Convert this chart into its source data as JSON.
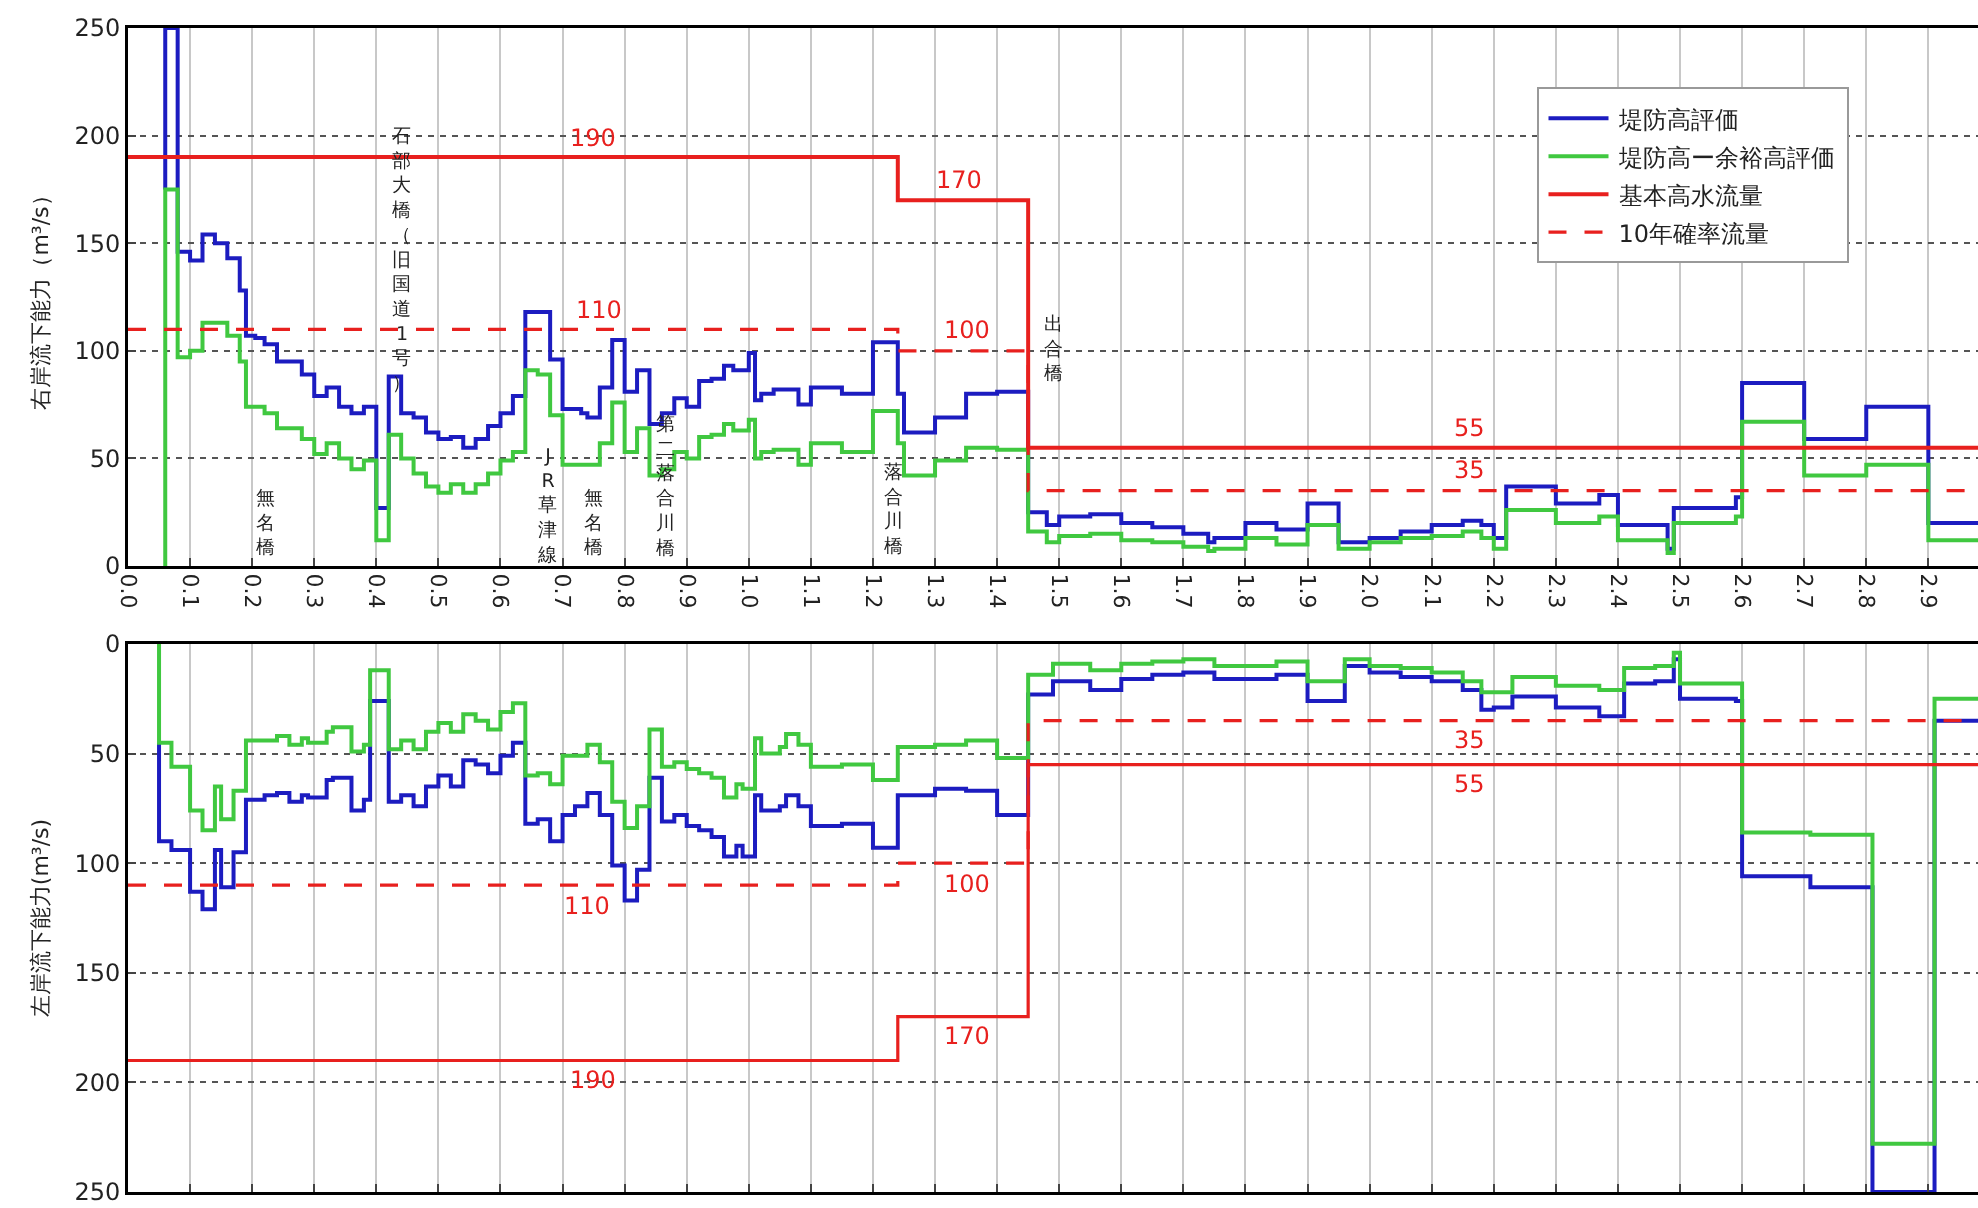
{
  "chart_data": [
    {
      "type": "step",
      "ylabel": "右岸流下能力（m³/s）",
      "xlim": [
        0,
        2.98
      ],
      "ylim": [
        0,
        250
      ],
      "xticks": [
        {
          "value": 0,
          "label": "0.0"
        },
        0.1,
        0.2,
        0.3,
        0.4,
        0.5,
        0.6,
        0.7,
        0.8,
        0.9,
        {
          "value": 1,
          "label": "1.0"
        },
        1.1,
        1.2,
        1.3,
        1.4,
        1.5,
        1.6,
        1.7,
        1.8,
        1.9,
        {
          "value": 2,
          "label": "2.0"
        },
        2.1,
        2.2,
        2.3,
        2.4,
        2.5,
        2.6,
        2.7,
        2.8,
        2.9
      ],
      "yticks": [
        0,
        50,
        100,
        150,
        200,
        250
      ],
      "grid": true,
      "legend": "top right",
      "series": [
        {
          "name": "堤防高評価",
          "color": "#1c1cc0",
          "x": [
            0.06,
            0.06,
            0.08,
            0.1,
            0.12,
            0.14,
            0.16,
            0.18,
            0.19,
            0.205,
            0.22,
            0.24,
            0.28,
            0.3,
            0.32,
            0.34,
            0.36,
            0.38,
            0.4,
            0.42,
            0.44,
            0.46,
            0.48,
            0.5,
            0.52,
            0.54,
            0.56,
            0.58,
            0.6,
            0.62,
            0.64,
            0.68,
            0.7,
            0.73,
            0.74,
            0.76,
            0.78,
            0.8,
            0.82,
            0.84,
            0.86,
            0.88,
            0.9,
            0.92,
            0.94,
            0.96,
            0.975,
            1.0,
            1.01,
            1.02,
            1.04,
            1.08,
            1.1,
            1.15,
            1.2,
            1.24,
            1.25,
            1.3,
            1.35,
            1.4,
            1.45,
            1.48,
            1.5,
            1.55,
            1.6,
            1.65,
            1.7,
            1.74,
            1.75,
            1.8,
            1.85,
            1.9,
            1.95,
            2.0,
            2.05,
            2.1,
            2.15,
            2.18,
            2.2,
            2.22,
            2.3,
            2.37,
            2.4,
            2.48,
            2.49,
            2.59,
            2.6,
            2.7,
            2.8,
            2.9,
            2.98
          ],
          "values": [
            175,
            250,
            146,
            142,
            154,
            150,
            143,
            128,
            107,
            106,
            103,
            95,
            89,
            79,
            83,
            74,
            71,
            74,
            27,
            88,
            71,
            69,
            62,
            59,
            60,
            55,
            59,
            65,
            71,
            79,
            118,
            96,
            73,
            71,
            69,
            83,
            105,
            81,
            91,
            66,
            71,
            78,
            74,
            86,
            87,
            93,
            91,
            99,
            77,
            80,
            82,
            75,
            83,
            80,
            104,
            80,
            62,
            69,
            80,
            81,
            25,
            19,
            23,
            24,
            20,
            18,
            15,
            11,
            13,
            20,
            17,
            29,
            11,
            13,
            16,
            19,
            21,
            19,
            13,
            37,
            29,
            33,
            19,
            8,
            27,
            32,
            85,
            59,
            74,
            20,
            20
          ]
        },
        {
          "name": "堤防高ー余裕高評価",
          "color": "#40c840",
          "x": [
            0.06,
            0.06,
            0.08,
            0.1,
            0.12,
            0.16,
            0.18,
            0.19,
            0.22,
            0.24,
            0.28,
            0.3,
            0.32,
            0.34,
            0.36,
            0.38,
            0.4,
            0.42,
            0.44,
            0.46,
            0.48,
            0.5,
            0.52,
            0.54,
            0.56,
            0.58,
            0.6,
            0.62,
            0.64,
            0.66,
            0.68,
            0.7,
            0.76,
            0.78,
            0.8,
            0.82,
            0.84,
            0.86,
            0.88,
            0.9,
            0.92,
            0.94,
            0.96,
            0.975,
            1.0,
            1.01,
            1.02,
            1.04,
            1.08,
            1.1,
            1.15,
            1.2,
            1.24,
            1.25,
            1.3,
            1.35,
            1.4,
            1.45,
            1.48,
            1.5,
            1.55,
            1.6,
            1.65,
            1.7,
            1.74,
            1.75,
            1.8,
            1.85,
            1.9,
            1.95,
            2.0,
            2.05,
            2.1,
            2.15,
            2.18,
            2.2,
            2.22,
            2.3,
            2.37,
            2.4,
            2.48,
            2.49,
            2.59,
            2.6,
            2.7,
            2.8,
            2.9,
            2.98
          ],
          "values": [
            0,
            175,
            97,
            100,
            113,
            107,
            95,
            74,
            71,
            64,
            59,
            52,
            57,
            50,
            45,
            49,
            12,
            61,
            50,
            43,
            37,
            34,
            38,
            34,
            38,
            43,
            49,
            53,
            91,
            89,
            70,
            47,
            57,
            76,
            53,
            64,
            42,
            45,
            53,
            50,
            60,
            61,
            66,
            63,
            68,
            50,
            53,
            54,
            47,
            57,
            53,
            72,
            57,
            42,
            49,
            55,
            54,
            16,
            11,
            14,
            15,
            12,
            11,
            9,
            7,
            8,
            13,
            10,
            19,
            8,
            11,
            13,
            14,
            16,
            13,
            8,
            26,
            20,
            23,
            12,
            6,
            20,
            23,
            67,
            42,
            47,
            12,
            12
          ]
        },
        {
          "name": "基本高水流量",
          "color": "#e8201e",
          "x": [
            0,
            1.24,
            1.45,
            2.98
          ],
          "values": [
            190,
            170,
            55,
            55
          ]
        },
        {
          "name": "10年確率流量",
          "color": "#e8201e",
          "line_style": "dashed",
          "x": [
            0,
            1.24,
            1.45,
            2.98
          ],
          "values": [
            110,
            100,
            35,
            35
          ]
        }
      ],
      "annotations": [
        {
          "text": "190",
          "x": 0.75,
          "y": 190
        },
        {
          "text": "170",
          "x": 1.34,
          "y": 170
        },
        {
          "text": "110",
          "x": 0.76,
          "y": 110
        },
        {
          "text": "100",
          "x": 1.35,
          "y": 100
        },
        {
          "text": "55",
          "x": 2.16,
          "y": 55
        },
        {
          "text": "35",
          "x": 2.16,
          "y": 35
        },
        "無名橋",
        "石部大橋（旧国道1号）",
        "JR草津線",
        "無名橋",
        "第二落合川橋",
        "落合川橋",
        "出合橋"
      ]
    },
    {
      "type": "step",
      "ylabel": "左岸流下能力(m³/s)",
      "xlim": [
        0,
        2.98
      ],
      "ylim": [
        250,
        0
      ],
      "tick_labels": "y",
      "xticks": [
        0,
        0.1,
        0.2,
        0.3,
        0.4,
        0.5,
        0.6,
        0.7,
        0.8,
        0.9,
        1,
        1.1,
        1.2,
        1.3,
        1.4,
        1.5,
        1.6,
        1.7,
        1.8,
        1.9,
        2,
        2.1,
        2.2,
        2.3,
        2.4,
        2.5,
        2.6,
        2.7,
        2.8,
        2.9
      ],
      "yticks": [
        0,
        50,
        100,
        150,
        200,
        250
      ],
      "grid": true,
      "series": [
        {
          "color": "#1c1cc0",
          "x": [
            0.05,
            0.05,
            0.07,
            0.1,
            0.12,
            0.14,
            0.15,
            0.17,
            0.19,
            0.22,
            0.24,
            0.26,
            0.28,
            0.29,
            0.32,
            0.33,
            0.36,
            0.38,
            0.39,
            0.42,
            0.44,
            0.46,
            0.48,
            0.5,
            0.52,
            0.54,
            0.56,
            0.58,
            0.6,
            0.62,
            0.64,
            0.66,
            0.68,
            0.7,
            0.72,
            0.74,
            0.76,
            0.78,
            0.8,
            0.82,
            0.84,
            0.86,
            0.88,
            0.9,
            0.92,
            0.94,
            0.96,
            0.98,
            0.99,
            1.01,
            1.02,
            1.05,
            1.06,
            1.08,
            1.1,
            1.15,
            1.2,
            1.24,
            1.3,
            1.35,
            1.4,
            1.45,
            1.49,
            1.55,
            1.6,
            1.65,
            1.7,
            1.75,
            1.85,
            1.9,
            1.96,
            2.0,
            2.05,
            2.1,
            2.15,
            2.18,
            2.2,
            2.23,
            2.3,
            2.37,
            2.41,
            2.46,
            2.49,
            2.5,
            2.59,
            2.6,
            2.71,
            2.81,
            2.91,
            2.98
          ],
          "values": [
            45,
            90,
            94,
            113,
            121,
            94,
            111,
            95,
            71,
            69,
            68,
            72,
            69,
            70,
            62,
            61,
            76,
            71,
            26,
            72,
            69,
            74,
            65,
            60,
            65,
            53,
            55,
            59,
            51,
            45,
            82,
            80,
            90,
            78,
            74,
            68,
            78,
            101,
            117,
            103,
            61,
            81,
            78,
            83,
            85,
            88,
            97,
            92,
            97,
            69,
            76,
            74,
            69,
            74,
            83,
            82,
            93,
            69,
            66,
            67,
            78,
            23,
            17,
            21,
            16,
            14,
            13,
            16,
            14,
            26,
            10,
            13,
            15,
            17,
            21,
            30,
            29,
            24,
            29,
            33,
            18,
            17,
            7,
            25,
            26,
            106,
            111,
            250,
            35,
            35
          ]
        },
        {
          "color": "#40c840",
          "x": [
            0.05,
            0.05,
            0.07,
            0.1,
            0.12,
            0.14,
            0.15,
            0.17,
            0.19,
            0.22,
            0.24,
            0.26,
            0.28,
            0.29,
            0.32,
            0.33,
            0.36,
            0.38,
            0.39,
            0.42,
            0.44,
            0.46,
            0.48,
            0.5,
            0.52,
            0.54,
            0.56,
            0.58,
            0.6,
            0.62,
            0.64,
            0.66,
            0.68,
            0.7,
            0.72,
            0.74,
            0.76,
            0.78,
            0.8,
            0.82,
            0.84,
            0.86,
            0.88,
            0.9,
            0.92,
            0.94,
            0.96,
            0.98,
            0.99,
            1.01,
            1.02,
            1.05,
            1.06,
            1.08,
            1.1,
            1.15,
            1.2,
            1.24,
            1.3,
            1.35,
            1.4,
            1.45,
            1.49,
            1.55,
            1.6,
            1.65,
            1.7,
            1.75,
            1.85,
            1.9,
            1.96,
            2.0,
            2.05,
            2.1,
            2.15,
            2.18,
            2.2,
            2.23,
            2.3,
            2.37,
            2.41,
            2.46,
            2.49,
            2.5,
            2.59,
            2.6,
            2.71,
            2.81,
            2.91,
            2.98
          ],
          "values": [
            0,
            45,
            56,
            76,
            85,
            65,
            80,
            67,
            44,
            44,
            42,
            46,
            43,
            45,
            40,
            38,
            49,
            46,
            12,
            48,
            44,
            48,
            40,
            36,
            40,
            32,
            35,
            39,
            31,
            27,
            60,
            59,
            64,
            51,
            51,
            46,
            54,
            72,
            84,
            74,
            39,
            56,
            54,
            57,
            59,
            61,
            70,
            64,
            66,
            43,
            50,
            47,
            41,
            46,
            56,
            55,
            62,
            47,
            46,
            44,
            52,
            14,
            9,
            12,
            9,
            8,
            7,
            10,
            8,
            17,
            7,
            10,
            11,
            13,
            17,
            22,
            22,
            15,
            19,
            21,
            11,
            10,
            4,
            18,
            18,
            86,
            87,
            228,
            25,
            25
          ]
        },
        {
          "color": "#e8201e",
          "x": [
            0,
            1.24,
            1.45,
            2.98
          ],
          "values": [
            190,
            170,
            55,
            55
          ]
        },
        {
          "color": "#e8201e",
          "line_style": "dashed",
          "x": [
            0,
            1.24,
            1.45,
            2.98
          ],
          "values": [
            110,
            100,
            35,
            35
          ]
        }
      ],
      "annotations": [
        {
          "text": "110",
          "x": 0.74,
          "y": 110
        },
        {
          "text": "100",
          "x": 1.35,
          "y": 100
        },
        {
          "text": "190",
          "x": 0.75,
          "y": 190
        },
        {
          "text": "170",
          "x": 1.35,
          "y": 170
        },
        {
          "text": "35",
          "x": 2.16,
          "y": 35
        },
        {
          "text": "55",
          "x": 2.16,
          "y": 55
        }
      ]
    }
  ]
}
